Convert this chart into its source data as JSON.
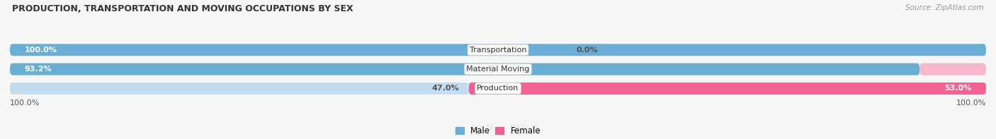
{
  "title": "PRODUCTION, TRANSPORTATION AND MOVING OCCUPATIONS BY SEX",
  "source": "Source: ZipAtlas.com",
  "categories": [
    "Transportation",
    "Material Moving",
    "Production"
  ],
  "male_pct": [
    100.0,
    93.2,
    47.0
  ],
  "female_pct": [
    0.0,
    6.8,
    53.0
  ],
  "male_color_dark": "#6AAED6",
  "male_color_light": "#C5DCEF",
  "female_color_dark": "#F06292",
  "female_color_light": "#F7B8CC",
  "row_bg_color": "#EBEBEB",
  "fig_bg_color": "#F7F7F7",
  "label_color_white": "#FFFFFF",
  "label_color_dark": "#555555",
  "axis_label_left": "100.0%",
  "axis_label_right": "100.0%",
  "figsize": [
    14.06,
    1.97
  ],
  "dpi": 100
}
